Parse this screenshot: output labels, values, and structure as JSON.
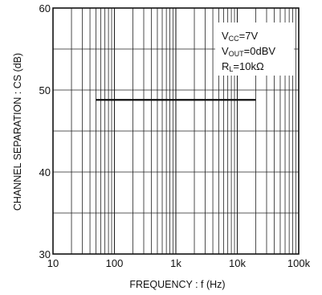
{
  "chart_data": {
    "type": "line",
    "xlabel": "FREQUENCY : f (Hz)",
    "ylabel": "CHANNEL  SEPARATION : CS (dB)",
    "x_scale": "log",
    "xlim": [
      10,
      100000
    ],
    "ylim": [
      30,
      60
    ],
    "x_ticks": [
      10,
      100,
      1000,
      10000,
      100000
    ],
    "x_tick_labels": [
      "10",
      "100",
      "1k",
      "10k",
      "100k"
    ],
    "y_ticks": [
      30,
      40,
      50,
      60
    ],
    "y_tick_labels": [
      "30",
      "40",
      "50",
      "60"
    ],
    "grid": true,
    "series": [
      {
        "x": [
          50,
          20000
        ],
        "y": [
          48.8,
          48.8
        ]
      }
    ],
    "annotations": [
      {
        "main": "V",
        "sub": "CC",
        "rest": "=7V"
      },
      {
        "main": "V",
        "sub": "OUT",
        "rest": "=0dBV"
      },
      {
        "main": "R",
        "sub": "L",
        "rest": "=10kΩ"
      }
    ]
  }
}
